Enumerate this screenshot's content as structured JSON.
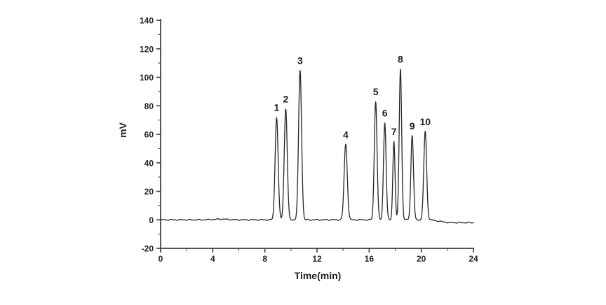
{
  "figure": {
    "background": "#ffffff",
    "axis_color": "#3c3c3c",
    "text_color": "#1f1f1f"
  },
  "chart_data": {
    "type": "line",
    "description": "Chromatogram with ten numbered peaks",
    "title": "",
    "xlabel": "Time(min)",
    "ylabel": "mV",
    "xlim": [
      0,
      24
    ],
    "ylim": [
      -20,
      140
    ],
    "x_major_ticks": [
      0,
      4,
      8,
      12,
      16,
      20,
      24
    ],
    "x_minor_step": 2,
    "y_major_ticks": [
      -20,
      0,
      20,
      40,
      60,
      80,
      100,
      120,
      140
    ],
    "y_minor_step": 10,
    "grid": false,
    "legend": null,
    "line_color": "#262626",
    "peaks": [
      {
        "label": "1",
        "time": 8.9,
        "height": 72,
        "sigma": 0.115
      },
      {
        "label": "2",
        "time": 9.6,
        "height": 78,
        "sigma": 0.115
      },
      {
        "label": "3",
        "time": 10.7,
        "height": 105,
        "sigma": 0.115
      },
      {
        "label": "4",
        "time": 14.2,
        "height": 53,
        "sigma": 0.12
      },
      {
        "label": "5",
        "time": 16.5,
        "height": 83,
        "sigma": 0.105
      },
      {
        "label": "6",
        "time": 17.2,
        "height": 68,
        "sigma": 0.1
      },
      {
        "label": "7",
        "time": 17.9,
        "height": 55,
        "sigma": 0.085
      },
      {
        "label": "8",
        "time": 18.4,
        "height": 106,
        "sigma": 0.095
      },
      {
        "label": "9",
        "time": 19.3,
        "height": 59,
        "sigma": 0.1
      },
      {
        "label": "10",
        "time": 20.3,
        "height": 62,
        "sigma": 0.11
      }
    ],
    "baseline": {
      "start_mV": 0,
      "end_mV": -2,
      "drift_start_min": 20.7,
      "drift_span_min": 1.4
    }
  }
}
